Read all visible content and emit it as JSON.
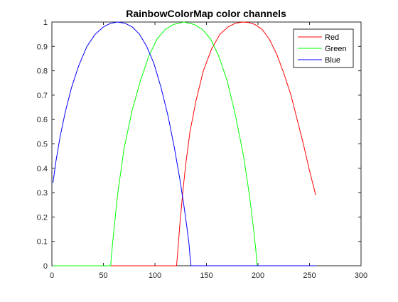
{
  "chart_data": {
    "type": "line",
    "title": "RainbowColorMap color channels",
    "xlabel": "",
    "ylabel": "",
    "xlim": [
      0,
      300
    ],
    "ylim": [
      0,
      1
    ],
    "xticks": [
      0,
      50,
      100,
      150,
      200,
      250,
      300
    ],
    "yticks": [
      0,
      0.1,
      0.2,
      0.3,
      0.4,
      0.5,
      0.6,
      0.7,
      0.8,
      0.9,
      1
    ],
    "grid": false,
    "legend_position": "top-right",
    "series": [
      {
        "name": "Red",
        "color": "#ff0000",
        "x": [
          1,
          121,
          122,
          124,
          127,
          130,
          134,
          140,
          147,
          155,
          163,
          171,
          178,
          185,
          191,
          197,
          204,
          211,
          218,
          225,
          232,
          238,
          244,
          250,
          256
        ],
        "y": [
          0,
          0,
          0.05,
          0.16,
          0.3,
          0.42,
          0.55,
          0.68,
          0.8,
          0.89,
          0.95,
          0.98,
          0.995,
          1.0,
          0.998,
          0.99,
          0.97,
          0.93,
          0.87,
          0.79,
          0.7,
          0.6,
          0.5,
          0.39,
          0.29
        ]
      },
      {
        "name": "Green",
        "color": "#00ff00",
        "x": [
          1,
          57,
          58,
          60,
          64,
          70,
          78,
          86,
          94,
          102,
          110,
          118,
          128,
          138,
          146,
          154,
          162,
          170,
          178,
          186,
          192,
          196,
          198,
          199,
          256
        ],
        "y": [
          0,
          0,
          0.05,
          0.14,
          0.3,
          0.48,
          0.64,
          0.76,
          0.86,
          0.93,
          0.97,
          0.99,
          1.0,
          0.99,
          0.97,
          0.93,
          0.86,
          0.76,
          0.62,
          0.45,
          0.28,
          0.14,
          0.06,
          0,
          0
        ]
      },
      {
        "name": "Blue",
        "color": "#0000ff",
        "x": [
          1,
          4,
          8,
          13,
          19,
          26,
          34,
          42,
          50,
          57,
          64,
          71,
          78,
          85,
          92,
          99,
          106,
          113,
          119,
          124,
          128,
          131,
          133,
          134,
          135,
          256
        ],
        "y": [
          0.34,
          0.43,
          0.53,
          0.63,
          0.73,
          0.82,
          0.9,
          0.95,
          0.98,
          0.995,
          1.0,
          0.995,
          0.98,
          0.95,
          0.9,
          0.83,
          0.73,
          0.61,
          0.48,
          0.36,
          0.25,
          0.16,
          0.09,
          0.04,
          0,
          0
        ]
      }
    ]
  }
}
